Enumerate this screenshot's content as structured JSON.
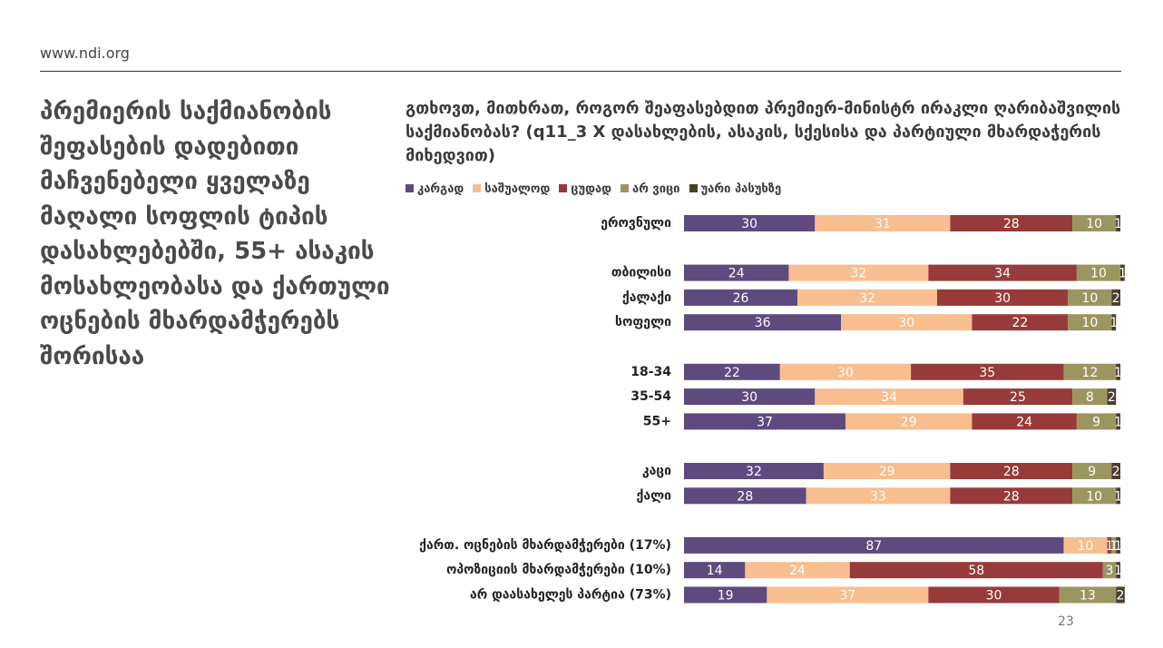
{
  "header": {
    "site": "www.ndi.org"
  },
  "headline": "პრემიერის საქმიანობის შეფასების დადებითი მაჩვენებელი ყველაზე მაღალი სოფლის ტიპის დასახლებებში, 55+ ასაკის მოსახლეობასა და ქართული ოცნების მხარდამჭერებს შორისაა",
  "page_number": "23",
  "chart_data": {
    "type": "stacked-barh",
    "title": "გთხოვთ, მითხრათ, როგორ შეაფასებდით პრემიერ-მინისტრ ირაკლი ღარიბაშვილის საქმიანობას? (q11_3 X დასახლების, ასაკის, სქესისა და პარტიული მხარდაჭერის მიხედვით)",
    "categories": [
      "ეროვნული",
      null,
      "თბილისი",
      "ქალაქი",
      "სოფელი",
      null,
      "18-34",
      "35-54",
      "55+",
      null,
      "კაცი",
      "ქალი",
      null,
      "ქართ. ოცნების მხარდამჭერები (17%)",
      "ოპოზიციის მხარდამჭერები (10%)",
      "არ დაასახელეს პარტია (73%)"
    ],
    "xlim": [
      0,
      100
    ],
    "legend": "top-left",
    "series": [
      {
        "name": "კარგად",
        "color": "#5e4a7e",
        "values": [
          30,
          null,
          24,
          26,
          36,
          null,
          22,
          30,
          37,
          null,
          32,
          28,
          null,
          87,
          14,
          19
        ]
      },
      {
        "name": "საშუალოდ",
        "color": "#f9be8f",
        "values": [
          31,
          null,
          32,
          32,
          30,
          null,
          30,
          34,
          29,
          null,
          29,
          33,
          null,
          10,
          24,
          37
        ]
      },
      {
        "name": "ცუდად",
        "color": "#973b3a",
        "values": [
          28,
          null,
          34,
          30,
          22,
          null,
          35,
          25,
          24,
          null,
          28,
          28,
          null,
          1,
          58,
          30
        ]
      },
      {
        "name": "არ ვიცი",
        "color": "#9b9560",
        "values": [
          10,
          null,
          10,
          10,
          10,
          null,
          12,
          8,
          9,
          null,
          9,
          10,
          null,
          1,
          3,
          13
        ]
      },
      {
        "name": "უარი პასუხზე",
        "color": "#4a3f2a",
        "values": [
          1,
          null,
          1,
          2,
          1,
          null,
          1,
          2,
          1,
          null,
          2,
          1,
          null,
          1,
          1,
          2
        ]
      }
    ]
  }
}
